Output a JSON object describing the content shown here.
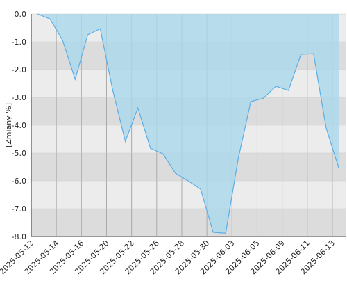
{
  "chart_data": {
    "type": "area",
    "y_label": "[Zmiany %]",
    "categories": [
      "2025-05-12",
      null,
      "2025-05-14",
      null,
      "2025-05-16",
      null,
      "2025-05-20",
      null,
      "2025-05-22",
      null,
      "2025-05-26",
      null,
      "2025-05-28",
      null,
      "2025-05-30",
      null,
      "2025-06-03",
      null,
      "2025-06-05",
      null,
      "2025-06-09",
      null,
      "2025-06-11",
      null,
      "2025-06-13"
    ],
    "values": [
      0,
      -0.18,
      -0.95,
      -2.35,
      -0.75,
      -0.53,
      -2.75,
      -4.58,
      -3.38,
      -4.83,
      -5.03,
      -5.73,
      -6.0,
      -6.3,
      -7.85,
      -7.88,
      -5.2,
      -3.15,
      -3.03,
      -2.6,
      -2.75,
      -1.45,
      -1.43,
      -4.1,
      -5.53
    ],
    "color": "#5aaee6",
    "fill": "#aad8ec",
    "ylim": [
      -8,
      0
    ],
    "yticks": [
      {
        "value": 0,
        "label": "0.0"
      },
      {
        "value": -1,
        "label": "-1.0"
      },
      {
        "value": -2,
        "label": "-2.0"
      },
      {
        "value": -3,
        "label": "-3.0"
      },
      {
        "value": -4,
        "label": "-4.0"
      },
      {
        "value": -5,
        "label": "-5.0"
      },
      {
        "value": -6,
        "label": "-6.0"
      },
      {
        "value": -7,
        "label": "-7.0"
      },
      {
        "value": -8,
        "label": "-8.0"
      }
    ],
    "grid": true
  }
}
